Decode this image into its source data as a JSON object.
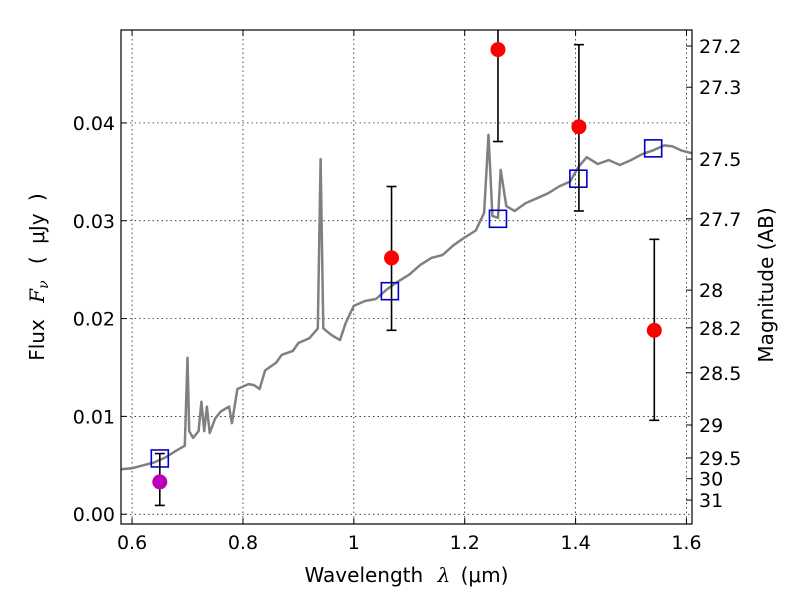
{
  "chart_data": {
    "type": "scatter",
    "xlabel": {
      "text": "Wavelength",
      "symbol": "λ",
      "open": "(",
      "unit": "μm",
      "close": ")"
    },
    "ylabel": {
      "text": "Flux",
      "symbol": "F",
      "sub": "ν",
      "open": "(",
      "unit": "μJy",
      "close": ")"
    },
    "y2label": "Magnitude (AB)",
    "xlim": [
      0.58,
      1.61
    ],
    "ylim": [
      -0.001,
      0.0495
    ],
    "grid": true,
    "xticks": [
      {
        "v": 0.6,
        "label": "0.6"
      },
      {
        "v": 0.8,
        "label": "0.8"
      },
      {
        "v": 1.0,
        "label": "1"
      },
      {
        "v": 1.2,
        "label": "1.2"
      },
      {
        "v": 1.4,
        "label": "1.4"
      },
      {
        "v": 1.6,
        "label": "1.6"
      }
    ],
    "yticks": [
      {
        "v": 0.0,
        "label": "0.00"
      },
      {
        "v": 0.01,
        "label": "0.01"
      },
      {
        "v": 0.02,
        "label": "0.02"
      },
      {
        "v": 0.03,
        "label": "0.03"
      },
      {
        "v": 0.04,
        "label": "0.04"
      }
    ],
    "mag_ticks": [
      "27.2",
      "27.3",
      "27.5",
      "27.7",
      "28",
      "28.2",
      "28.5",
      "29",
      "29.5",
      "30",
      "31"
    ],
    "template_spectrum": {
      "color": "#808080",
      "points": [
        [
          0.58,
          0.0046
        ],
        [
          0.6,
          0.0047
        ],
        [
          0.62,
          0.005
        ],
        [
          0.64,
          0.0053
        ],
        [
          0.66,
          0.0058
        ],
        [
          0.68,
          0.0065
        ],
        [
          0.695,
          0.007
        ],
        [
          0.7,
          0.016
        ],
        [
          0.703,
          0.0085
        ],
        [
          0.71,
          0.0078
        ],
        [
          0.72,
          0.0085
        ],
        [
          0.725,
          0.0115
        ],
        [
          0.73,
          0.0085
        ],
        [
          0.735,
          0.011
        ],
        [
          0.74,
          0.0083
        ],
        [
          0.75,
          0.0098
        ],
        [
          0.76,
          0.0105
        ],
        [
          0.775,
          0.011
        ],
        [
          0.78,
          0.0093
        ],
        [
          0.79,
          0.0128
        ],
        [
          0.81,
          0.0133
        ],
        [
          0.82,
          0.0132
        ],
        [
          0.83,
          0.0128
        ],
        [
          0.84,
          0.0147
        ],
        [
          0.86,
          0.0155
        ],
        [
          0.87,
          0.0163
        ],
        [
          0.89,
          0.0167
        ],
        [
          0.9,
          0.0175
        ],
        [
          0.92,
          0.018
        ],
        [
          0.935,
          0.019
        ],
        [
          0.94,
          0.0363
        ],
        [
          0.945,
          0.019
        ],
        [
          0.96,
          0.0183
        ],
        [
          0.975,
          0.0178
        ],
        [
          0.985,
          0.0195
        ],
        [
          1.0,
          0.0213
        ],
        [
          1.02,
          0.0218
        ],
        [
          1.04,
          0.022
        ],
        [
          1.06,
          0.023
        ],
        [
          1.08,
          0.0238
        ],
        [
          1.1,
          0.0245
        ],
        [
          1.12,
          0.0255
        ],
        [
          1.14,
          0.0262
        ],
        [
          1.16,
          0.0265
        ],
        [
          1.18,
          0.0275
        ],
        [
          1.2,
          0.0283
        ],
        [
          1.22,
          0.029
        ],
        [
          1.235,
          0.0308
        ],
        [
          1.243,
          0.0388
        ],
        [
          1.25,
          0.0305
        ],
        [
          1.26,
          0.0303
        ],
        [
          1.265,
          0.0352
        ],
        [
          1.275,
          0.0315
        ],
        [
          1.29,
          0.031
        ],
        [
          1.31,
          0.0318
        ],
        [
          1.33,
          0.0323
        ],
        [
          1.35,
          0.0328
        ],
        [
          1.37,
          0.0335
        ],
        [
          1.39,
          0.034
        ],
        [
          1.405,
          0.0355
        ],
        [
          1.42,
          0.0365
        ],
        [
          1.44,
          0.0358
        ],
        [
          1.46,
          0.0362
        ],
        [
          1.48,
          0.0357
        ],
        [
          1.5,
          0.0362
        ],
        [
          1.52,
          0.0368
        ],
        [
          1.54,
          0.0372
        ],
        [
          1.56,
          0.0377
        ],
        [
          1.575,
          0.0376
        ],
        [
          1.59,
          0.0372
        ],
        [
          1.61,
          0.0369
        ]
      ]
    },
    "model_points": {
      "color": "#0000cc",
      "points": [
        [
          0.65,
          0.0057
        ],
        [
          1.065,
          0.0228
        ],
        [
          1.26,
          0.0302
        ],
        [
          1.405,
          0.0343
        ],
        [
          1.54,
          0.0374
        ]
      ]
    },
    "observed_points": [
      {
        "x": 0.65,
        "y": 0.0033,
        "err": [
          0.0009,
          0.0062
        ],
        "color": "#bb00bb"
      },
      {
        "x": 1.068,
        "y": 0.0262,
        "err": [
          0.0188,
          0.0335
        ],
        "color": "#ff0000"
      },
      {
        "x": 1.26,
        "y": 0.0475,
        "err": [
          0.0381,
          0.0495
        ],
        "color": "#ff0000"
      },
      {
        "x": 1.406,
        "y": 0.0396,
        "err": [
          0.031,
          0.048
        ],
        "color": "#ff0000"
      },
      {
        "x": 1.542,
        "y": 0.0188,
        "err": [
          0.0096,
          0.0281
        ],
        "color": "#ff0000"
      }
    ]
  }
}
